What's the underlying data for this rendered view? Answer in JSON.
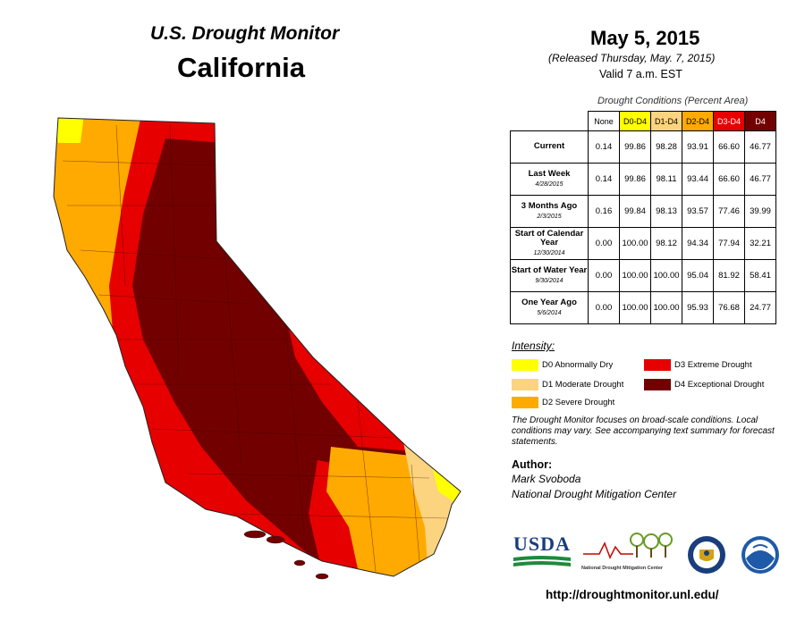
{
  "header": {
    "product": "U.S. Drought Monitor",
    "state": "California",
    "date": "May 5, 2015",
    "released": "(Released Thursday, May. 7, 2015)",
    "valid": "Valid 7 a.m. EST"
  },
  "table": {
    "caption": "Drought Conditions (Percent Area)",
    "columns": [
      "None",
      "D0-D4",
      "D1-D4",
      "D2-D4",
      "D3-D4",
      "D4"
    ],
    "rows": [
      {
        "label": "Current",
        "sub": "",
        "values": [
          "0.14",
          "99.86",
          "98.28",
          "93.91",
          "66.60",
          "46.77"
        ]
      },
      {
        "label": "Last Week",
        "sub": "4/28/2015",
        "values": [
          "0.14",
          "99.86",
          "98.11",
          "93.44",
          "66.60",
          "46.77"
        ]
      },
      {
        "label": "3 Months Ago",
        "sub": "2/3/2015",
        "values": [
          "0.16",
          "99.84",
          "98.13",
          "93.57",
          "77.46",
          "39.99"
        ]
      },
      {
        "label": "Start of Calendar Year",
        "sub": "12/30/2014",
        "values": [
          "0.00",
          "100.00",
          "98.12",
          "94.34",
          "77.94",
          "32.21"
        ]
      },
      {
        "label": "Start of Water Year",
        "sub": "9/30/2014",
        "values": [
          "0.00",
          "100.00",
          "100.00",
          "95.04",
          "81.92",
          "58.41"
        ]
      },
      {
        "label": "One Year Ago",
        "sub": "5/6/2014",
        "values": [
          "0.00",
          "100.00",
          "100.00",
          "95.93",
          "76.68",
          "24.77"
        ]
      }
    ]
  },
  "legend": {
    "title": "Intensity:",
    "items": [
      {
        "code": "D0",
        "label": "D0 Abnormally Dry",
        "color": "#ffff00"
      },
      {
        "code": "D1",
        "label": "D1 Moderate Drought",
        "color": "#fcd37f"
      },
      {
        "code": "D2",
        "label": "D2 Severe Drought",
        "color": "#ffaa00"
      },
      {
        "code": "D3",
        "label": "D3 Extreme Drought",
        "color": "#e60000"
      },
      {
        "code": "D4",
        "label": "D4 Exceptional Drought",
        "color": "#730000"
      }
    ]
  },
  "note": "The Drought Monitor focuses on broad-scale conditions. Local conditions may vary. See accompanying text summary for forecast statements.",
  "author": {
    "heading": "Author:",
    "name": "Mark Svoboda",
    "org": "National Drought Mitigation Center"
  },
  "logos": {
    "usda": "USDA",
    "ndmc": "National Drought Mitigation Center"
  },
  "url": "http://droughtmonitor.unl.edu/",
  "colors": {
    "none": "#ffffff",
    "d0": "#ffff00",
    "d1": "#fcd37f",
    "d2": "#ffaa00",
    "d3": "#e60000",
    "d4": "#730000"
  }
}
